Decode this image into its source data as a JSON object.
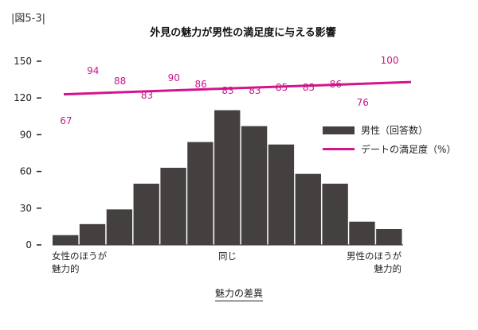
{
  "figure_label": "|図5-3|",
  "chart_data": {
    "type": "bar",
    "title": "外見の魅力が男性の満足度に与える影響",
    "xlabel": "魅力の差異",
    "x_category_labels": {
      "left": [
        "女性のほうが",
        "魅力的"
      ],
      "middle": [
        "同じ"
      ],
      "right": [
        "男性のほうが",
        "魅力的"
      ]
    },
    "ylim": [
      0,
      150
    ],
    "yticks": [
      0,
      30,
      60,
      90,
      120,
      150
    ],
    "grid": false,
    "legend_position": "right",
    "series": [
      {
        "name": "男性（回答数）",
        "type": "bar",
        "color": "#444040",
        "values": [
          8,
          17,
          29,
          50,
          63,
          84,
          110,
          97,
          82,
          58,
          50,
          19,
          13
        ]
      },
      {
        "name": "デートの満足度（%）",
        "type": "line",
        "color": "#d4148c",
        "trend_line": {
          "start": 123,
          "end": 133
        },
        "point_labels": [
          67,
          94,
          88,
          83,
          90,
          86,
          83,
          83,
          85,
          85,
          86,
          76,
          100
        ],
        "label_color": "#c8168a"
      }
    ]
  }
}
